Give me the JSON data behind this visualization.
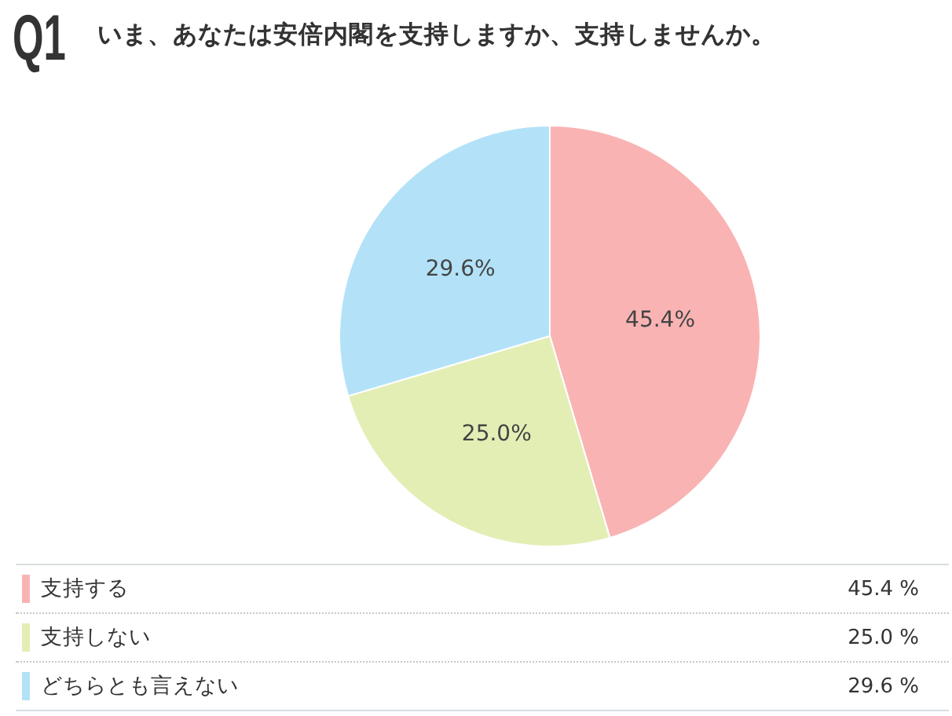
{
  "chart_data": {
    "type": "pie",
    "title": "いま、あなたは安倍内閣を支持しますか、支持しませんか。",
    "annotations": [
      "Q1"
    ],
    "categories": [
      "支持する",
      "支持しない",
      "どちらとも言えない"
    ],
    "values": [
      45.4,
      25.0,
      29.6
    ],
    "value_labels": [
      "45.4%",
      "25.0%",
      "29.6%"
    ],
    "colors": [
      "#fab3b3",
      "#e3eeb5",
      "#b3e2f8"
    ],
    "legend": "bottom"
  }
}
